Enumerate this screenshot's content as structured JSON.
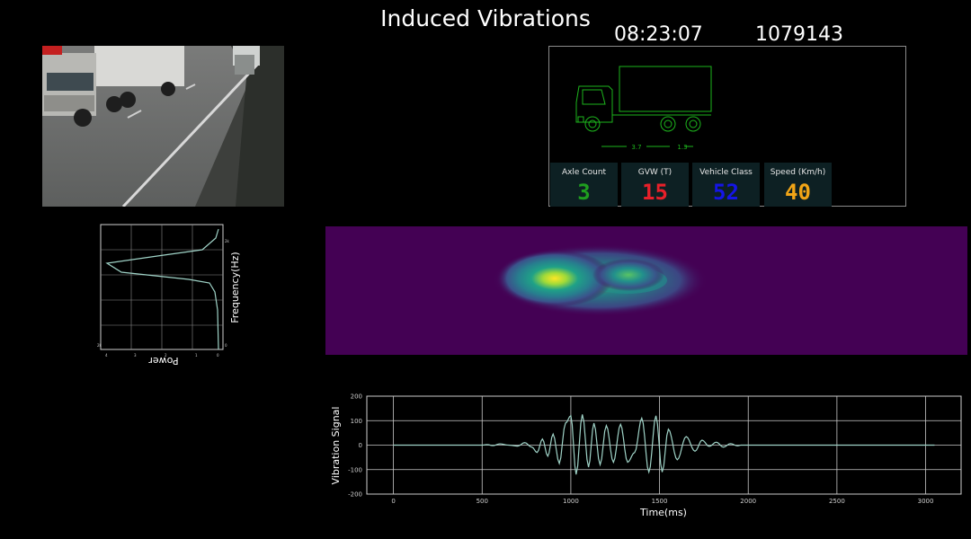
{
  "header": {
    "title": "Induced Vibrations",
    "time": "08:23:07",
    "counter": "1079143"
  },
  "vehicle_diagram": {
    "axle_spacing_1": "3.7",
    "axle_spacing_2": "1.3"
  },
  "stats": [
    {
      "label": "Axle Count",
      "value": "3",
      "color": "#1f9e1f"
    },
    {
      "label": "GVW (T)",
      "value": "15",
      "color": "#e8202a"
    },
    {
      "label": "Vehicle Class",
      "value": "52",
      "color": "#1515e6"
    },
    {
      "label": "Speed (Km/h)",
      "value": "40",
      "color": "#f2a516"
    }
  ],
  "spectrum": {
    "xlabel": "Power",
    "ylabel": "Frequency(Hz)"
  },
  "chart_data": {
    "type": "line",
    "xlabel": "Time(ms)",
    "ylabel": "Vibration Signal",
    "xlim": [
      -150,
      3200
    ],
    "ylim": [
      -200,
      200
    ],
    "x_ticks": [
      0,
      500,
      1000,
      1500,
      2000,
      2500,
      3000
    ],
    "y_ticks": [
      200,
      100,
      0,
      -100,
      -200
    ],
    "grid": true,
    "line_color": "#9fd3c7",
    "x": [
      0,
      500,
      530,
      560,
      600,
      650,
      700,
      740,
      780,
      810,
      840,
      870,
      900,
      935,
      970,
      1000,
      1030,
      1065,
      1100,
      1130,
      1165,
      1200,
      1240,
      1280,
      1320,
      1360,
      1400,
      1440,
      1480,
      1515,
      1550,
      1600,
      1650,
      1700,
      1740,
      1780,
      1820,
      1860,
      1900,
      1940,
      1960,
      2000,
      2500,
      3050
    ],
    "y": [
      0,
      0,
      2,
      -2,
      5,
      0,
      -4,
      10,
      -8,
      -30,
      25,
      -45,
      45,
      -75,
      90,
      120,
      -120,
      125,
      -90,
      90,
      -80,
      80,
      -70,
      85,
      -70,
      -30,
      110,
      -110,
      120,
      -110,
      65,
      -60,
      35,
      -25,
      20,
      -5,
      12,
      -8,
      6,
      -3,
      0,
      0,
      0,
      0
    ]
  }
}
